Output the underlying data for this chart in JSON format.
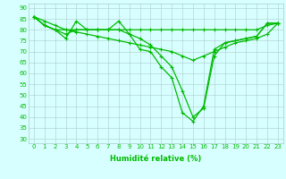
{
  "series": [
    {
      "x": [
        0,
        1,
        2,
        3,
        4,
        5,
        6,
        7,
        8,
        9,
        10,
        11,
        12,
        13,
        14,
        15,
        16,
        17,
        18,
        19,
        20,
        21,
        22,
        23
      ],
      "y": [
        86,
        82,
        80,
        76,
        84,
        80,
        80,
        80,
        84,
        78,
        71,
        70,
        63,
        58,
        42,
        38,
        45,
        71,
        74,
        75,
        76,
        77,
        83,
        83
      ]
    },
    {
      "x": [
        0,
        1,
        2,
        3,
        4,
        5,
        6,
        7,
        8,
        9,
        10,
        11,
        12,
        13,
        14,
        15,
        16,
        17,
        18,
        19,
        20,
        21,
        22,
        23
      ],
      "y": [
        86,
        82,
        80,
        80,
        80,
        80,
        80,
        80,
        80,
        80,
        80,
        80,
        80,
        80,
        80,
        80,
        80,
        80,
        80,
        80,
        80,
        80,
        82,
        83
      ]
    },
    {
      "x": [
        0,
        1,
        2,
        3,
        4,
        5,
        6,
        7,
        8,
        9,
        10,
        11,
        12,
        13,
        14,
        15,
        16,
        17,
        18,
        19,
        20,
        21,
        22,
        23
      ],
      "y": [
        86,
        82,
        80,
        78,
        80,
        80,
        80,
        80,
        80,
        78,
        76,
        73,
        68,
        63,
        52,
        40,
        44,
        68,
        74,
        75,
        76,
        77,
        83,
        83
      ]
    },
    {
      "x": [
        0,
        1,
        2,
        3,
        4,
        5,
        6,
        7,
        8,
        9,
        10,
        11,
        12,
        13,
        14,
        15,
        16,
        17,
        18,
        19,
        20,
        21,
        22,
        23
      ],
      "y": [
        86,
        84,
        82,
        80,
        79,
        78,
        77,
        76,
        75,
        74,
        73,
        72,
        71,
        70,
        68,
        66,
        68,
        70,
        72,
        74,
        75,
        76,
        78,
        83
      ]
    }
  ],
  "line_color": "#00BB00",
  "marker": "+",
  "marker_size": 3,
  "marker_linewidth": 0.8,
  "linewidth": 0.9,
  "bg_color": "#D8FFFF",
  "grid_color": "#AACCCC",
  "xlabel": "Humidité relative (%)",
  "xlabel_fontsize": 6,
  "xlabel_bold": true,
  "xlim": [
    -0.5,
    23.5
  ],
  "ylim": [
    28,
    92
  ],
  "yticks": [
    30,
    35,
    40,
    45,
    50,
    55,
    60,
    65,
    70,
    75,
    80,
    85,
    90
  ],
  "xticks": [
    0,
    1,
    2,
    3,
    4,
    5,
    6,
    7,
    8,
    9,
    10,
    11,
    12,
    13,
    14,
    15,
    16,
    17,
    18,
    19,
    20,
    21,
    22,
    23
  ],
  "tick_fontsize": 5,
  "tick_color": "#00BB00",
  "figsize": [
    3.2,
    2.0
  ],
  "dpi": 100
}
